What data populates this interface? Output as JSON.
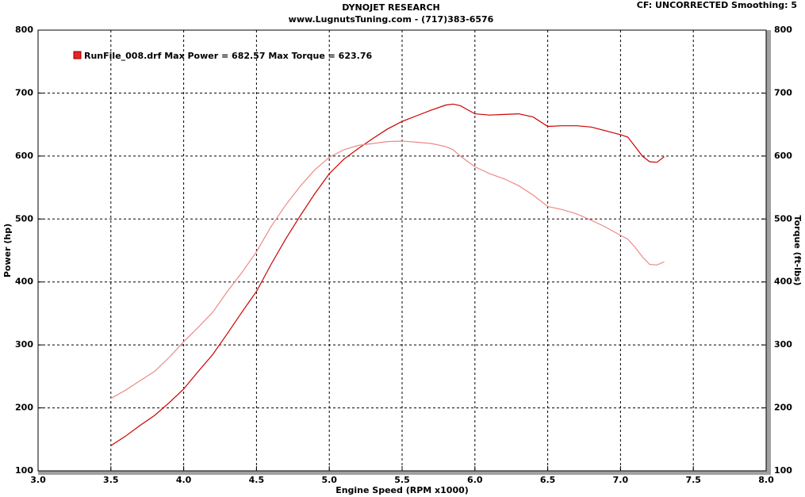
{
  "chart_data": {
    "type": "line",
    "title": "DYNOJET RESEARCH",
    "subtitle": "www.LugnutsTuning.com - (717)383-6576",
    "annotation": "CF: UNCORRECTED  Smoothing: 5",
    "legend": "RunFile_008.drf Max Power = 682.57     Max Torque = 623.76",
    "xlabel": "Engine Speed (RPM x1000)",
    "ylabel": "Power (hp)",
    "y2label": "Torque (ft-lbs)",
    "x": [
      3.5,
      3.6,
      3.7,
      3.8,
      3.9,
      4.0,
      4.1,
      4.2,
      4.3,
      4.4,
      4.5,
      4.6,
      4.7,
      4.8,
      4.9,
      5.0,
      5.1,
      5.2,
      5.3,
      5.4,
      5.5,
      5.6,
      5.7,
      5.8,
      5.85,
      5.9,
      6.0,
      6.1,
      6.2,
      6.3,
      6.4,
      6.5,
      6.6,
      6.7,
      6.8,
      6.9,
      7.0,
      7.05,
      7.1,
      7.15,
      7.2,
      7.25,
      7.3
    ],
    "series": [
      {
        "color": "#cc0000",
        "values": [
          140,
          155,
          172,
          188,
          208,
          230,
          258,
          285,
          318,
          352,
          385,
          428,
          468,
          505,
          540,
          572,
          595,
          612,
          628,
          643,
          655,
          664,
          673,
          681,
          682.57,
          680,
          667,
          665,
          666,
          667,
          662,
          647,
          648,
          648,
          646,
          640,
          634,
          630,
          615,
          600,
          591,
          590,
          599
        ]
      },
      {
        "color": "#ec8a8a",
        "axis": "y2",
        "values": [
          215,
          228,
          243,
          258,
          280,
          305,
          328,
          352,
          385,
          415,
          448,
          488,
          522,
          552,
          578,
          598,
          610,
          617,
          620,
          623,
          623.76,
          622,
          620,
          615,
          610,
          600,
          583,
          572,
          564,
          553,
          538,
          520,
          515,
          508,
          498,
          487,
          474,
          468,
          455,
          440,
          428,
          427,
          432
        ]
      }
    ],
    "xlim": [
      3,
      8
    ],
    "xticks": [
      {
        "value": 3,
        "label": "3.0"
      },
      3.5,
      {
        "value": 4,
        "label": "4.0"
      },
      4.5,
      {
        "value": 5,
        "label": "5.0"
      },
      5.5,
      {
        "value": 6,
        "label": "6.0"
      },
      6.5,
      {
        "value": 7,
        "label": "7.0"
      },
      7.5,
      {
        "value": 8,
        "label": "8.0"
      }
    ],
    "ylim": [
      100,
      800
    ],
    "yticks": [
      100,
      200,
      300,
      400,
      500,
      600,
      700,
      800
    ],
    "y2lim": [
      100,
      800
    ],
    "y2ticks": [
      100,
      200,
      300,
      400,
      500,
      600,
      700,
      800
    ],
    "grid": true,
    "legend_marker_color": "#ee2222"
  }
}
